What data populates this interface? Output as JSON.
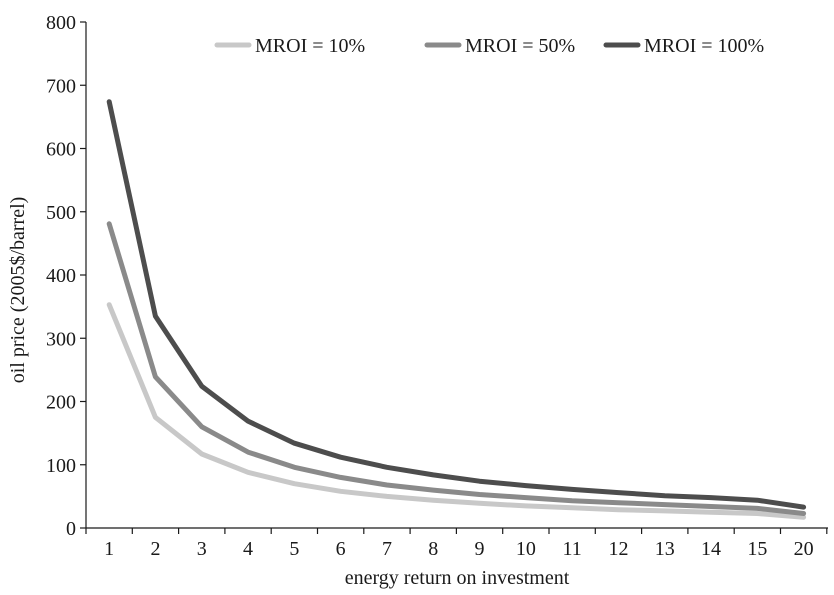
{
  "chart_data": {
    "type": "line",
    "title": "",
    "xlabel": "energy return on investment",
    "ylabel": "oil price (2005$/barrel)",
    "x": [
      1,
      2,
      3,
      4,
      5,
      6,
      7,
      8,
      9,
      10,
      11,
      12,
      13,
      14,
      15,
      20
    ],
    "x_ticks": [
      "1",
      "2",
      "3",
      "4",
      "5",
      "6",
      "7",
      "8",
      "9",
      "10",
      "11",
      "12",
      "13",
      "14",
      "15",
      "20"
    ],
    "ylim": [
      0,
      800
    ],
    "y_ticks": [
      0,
      100,
      200,
      300,
      400,
      500,
      600,
      700,
      800
    ],
    "grid": false,
    "legend_position": "top",
    "series": [
      {
        "name": "MROI = 10%",
        "color": "#c8c8c8",
        "values": [
          353,
          175,
          117,
          88,
          70,
          58,
          50,
          44,
          39,
          35,
          32,
          29,
          27,
          25,
          23,
          17
        ]
      },
      {
        "name": "MROI = 50%",
        "color": "#8a8a8a",
        "values": [
          481,
          239,
          160,
          120,
          96,
          80,
          68,
          60,
          53,
          48,
          43,
          40,
          37,
          34,
          31,
          23
        ]
      },
      {
        "name": "MROI = 100%",
        "color": "#4d4d4d",
        "values": [
          674,
          335,
          224,
          169,
          134,
          112,
          96,
          84,
          74,
          67,
          61,
          56,
          51,
          48,
          44,
          33
        ]
      }
    ]
  }
}
